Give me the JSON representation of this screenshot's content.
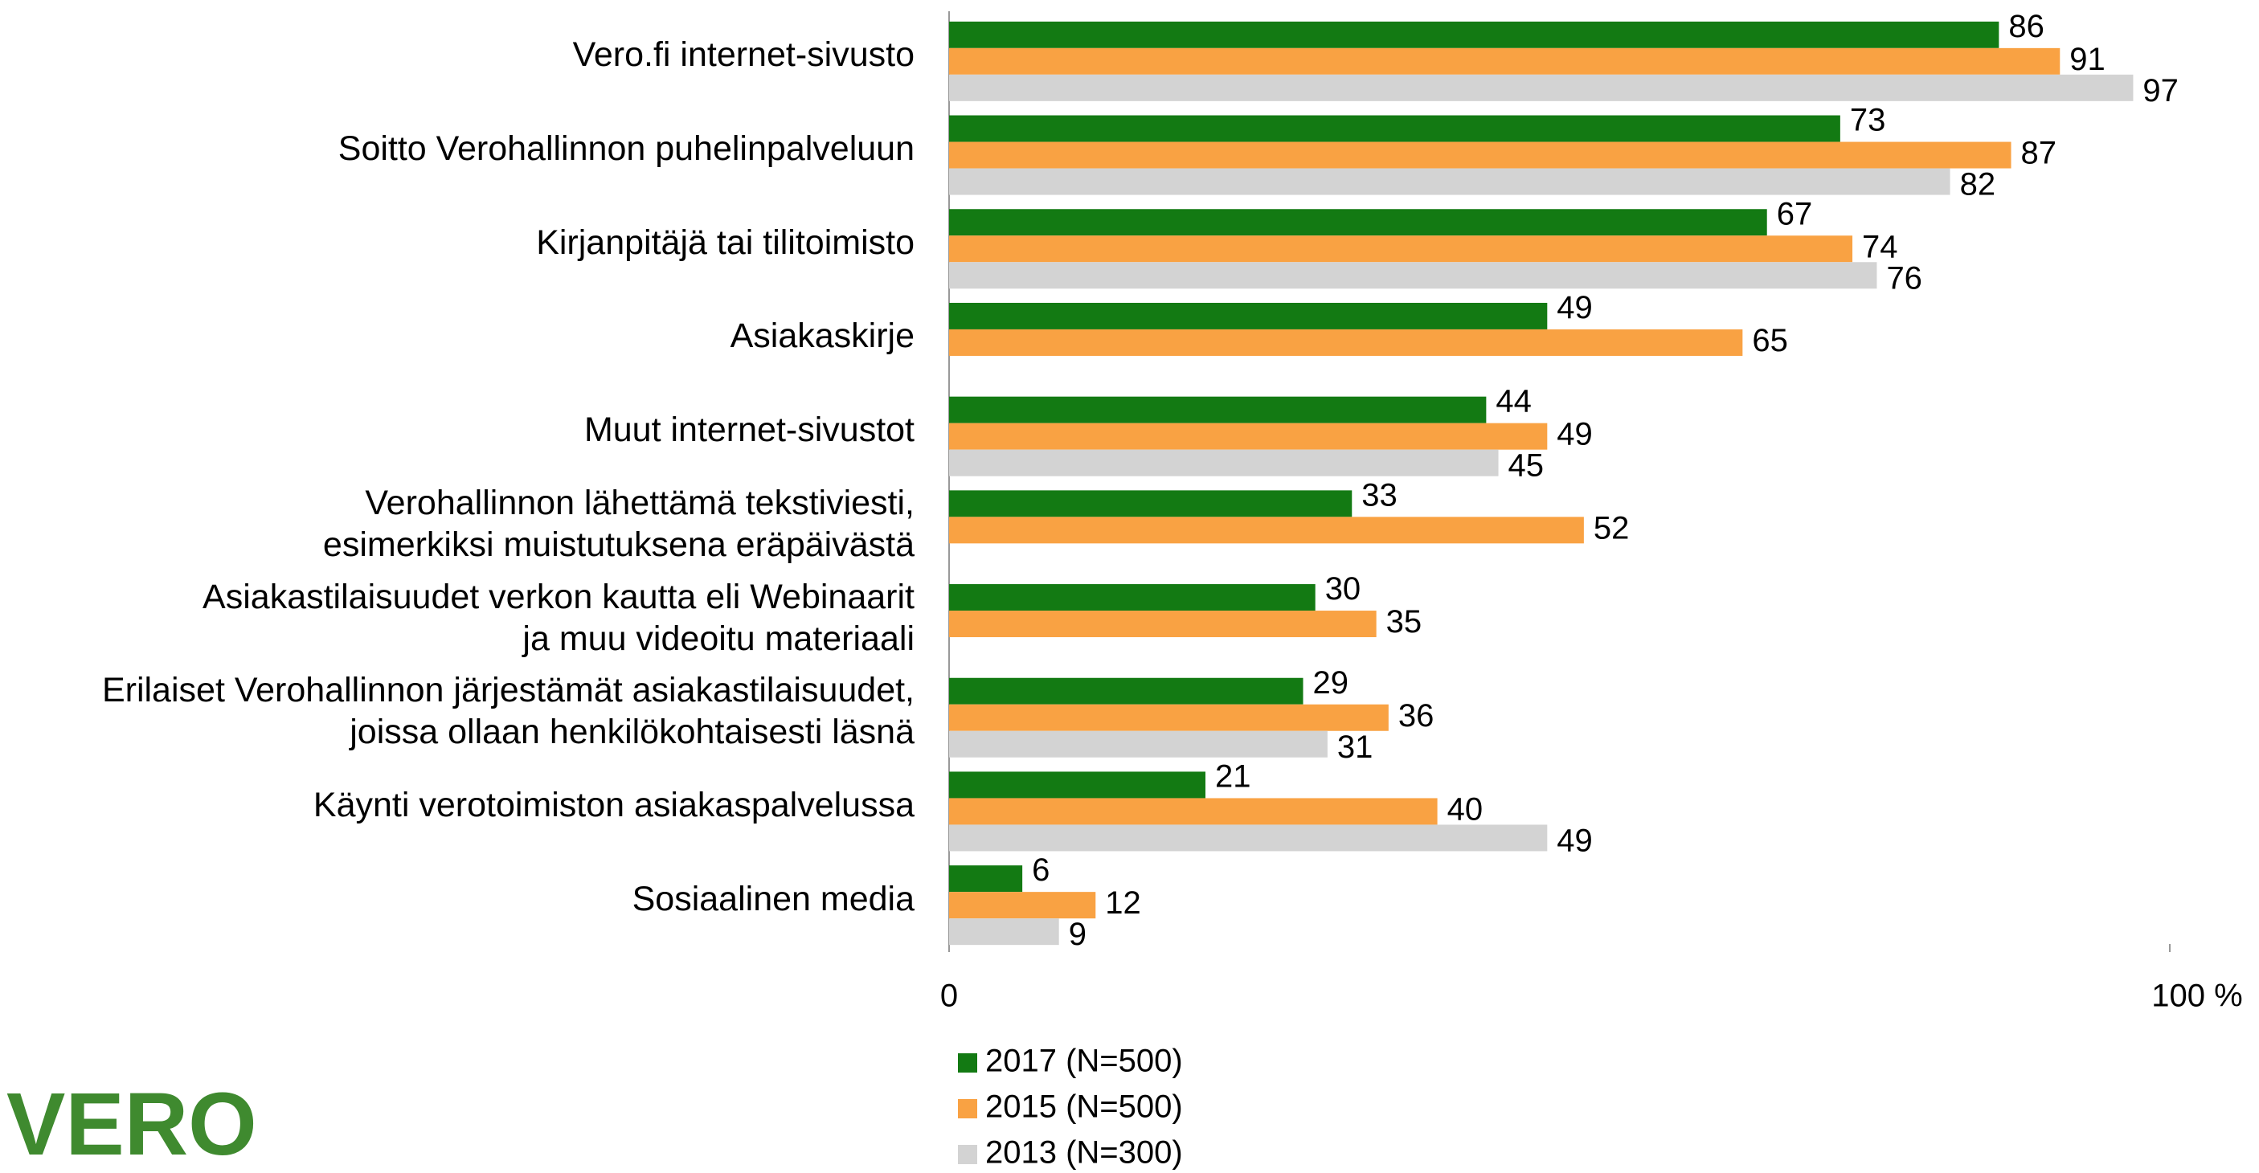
{
  "chart_data": {
    "type": "hbar",
    "categories": [
      "Vero.fi internet-sivusto",
      "Soitto Verohallinnon puhelinpalveluun",
      "Kirjanpitäjä tai tilitoimisto",
      "Asiakaskirje",
      "Muut internet-sivustot",
      "Verohallinnon lähettämä tekstiviesti,\nesimerkiksi muistutuksena eräpäivästä",
      "Asiakastilaisuudet verkon kautta eli Webinaarit\nja muu videoitu materiaali",
      "Erilaiset Verohallinnon järjestämät asiakastilaisuudet,\njoissa ollaan henkilökohtaisesti läsnä",
      "Käynti verotoimiston asiakaspalvelussa",
      "Sosiaalinen media"
    ],
    "series": [
      {
        "name": "2017 (N=500)",
        "color": "#137a13",
        "values": [
          86,
          73,
          67,
          49,
          44,
          33,
          30,
          29,
          21,
          6
        ]
      },
      {
        "name": "2015 (N=500)",
        "color": "#f9a243",
        "values": [
          91,
          87,
          74,
          65,
          49,
          52,
          35,
          36,
          40,
          12
        ]
      },
      {
        "name": "2013 (N=300)",
        "color": "#d3d3d3",
        "values": [
          97,
          82,
          76,
          null,
          45,
          null,
          null,
          31,
          49,
          9
        ]
      }
    ],
    "xlim": [
      0,
      100
    ],
    "xticks": [
      0,
      {
        "value": 100,
        "label": "100 %"
      }
    ],
    "legend": "bottom"
  },
  "logo": "VERO"
}
